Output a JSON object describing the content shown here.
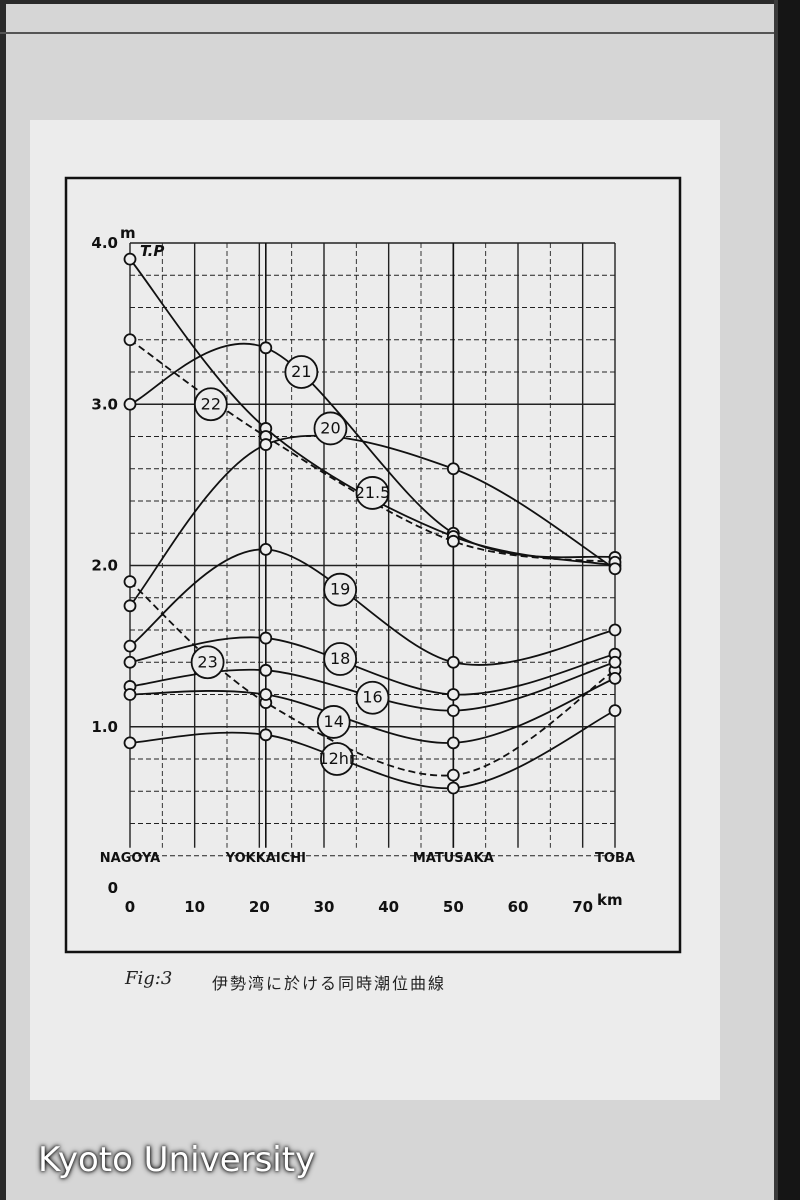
{
  "caption": {
    "fig": "Fig:3",
    "text": "伊勢湾に於ける同時潮位曲線"
  },
  "watermark": "Kyoto University",
  "chart_data": {
    "type": "line",
    "x_unit_label": "km",
    "y_unit_label": "m",
    "y_reference_label": "T.P",
    "xlim": [
      0,
      75
    ],
    "ylim": [
      0,
      4.0
    ],
    "x_ticks": [
      {
        "value": 0,
        "label": "0"
      },
      {
        "value": 10,
        "label": "10"
      },
      {
        "value": 20,
        "label": "20"
      },
      {
        "value": 30,
        "label": "30"
      },
      {
        "value": 40,
        "label": "40"
      },
      {
        "value": 50,
        "label": "50"
      },
      {
        "value": 60,
        "label": "60"
      },
      {
        "value": 70,
        "label": "70"
      }
    ],
    "y_ticks": [
      {
        "value": 0,
        "label": "0"
      },
      {
        "value": 1.0,
        "label": "1.0"
      },
      {
        "value": 2.0,
        "label": "2.0"
      },
      {
        "value": 3.0,
        "label": "3.0"
      },
      {
        "value": 4.0,
        "label": "4.0"
      }
    ],
    "grid": true,
    "locations": [
      {
        "name": "NAGOYA",
        "x": 0
      },
      {
        "name": "YOKKAICHI",
        "x": 21
      },
      {
        "name": "MATUSAKA",
        "x": 50
      },
      {
        "name": "TOBA",
        "x": 75
      }
    ],
    "series": [
      {
        "name": "21",
        "dashed": false,
        "x": [
          0,
          21,
          50,
          75
        ],
        "y": [
          3.0,
          3.35,
          2.2,
          2.05
        ],
        "label_at": [
          26.5,
          3.2
        ]
      },
      {
        "name": "21.5",
        "dashed": false,
        "x": [
          0,
          21,
          50,
          75
        ],
        "y": [
          3.9,
          2.85,
          2.18,
          2.0
        ],
        "label_at": [
          37.5,
          2.45
        ]
      },
      {
        "name": "22",
        "dashed": true,
        "x": [
          0,
          21,
          50,
          75
        ],
        "y": [
          3.4,
          2.8,
          2.15,
          2.02
        ],
        "label_at": [
          12.5,
          3.0
        ]
      },
      {
        "name": "20",
        "dashed": false,
        "x": [
          0,
          21,
          50,
          75
        ],
        "y": [
          1.75,
          2.75,
          2.6,
          1.98
        ],
        "label_at": [
          31,
          2.85
        ]
      },
      {
        "name": "19",
        "dashed": false,
        "x": [
          0,
          21,
          50,
          75
        ],
        "y": [
          1.5,
          2.1,
          1.4,
          1.6
        ],
        "label_at": [
          32.5,
          1.85
        ]
      },
      {
        "name": "23",
        "dashed": true,
        "x": [
          0,
          21,
          50,
          75
        ],
        "y": [
          1.9,
          1.15,
          0.7,
          1.35
        ],
        "label_at": [
          12,
          1.4
        ]
      },
      {
        "name": "18",
        "dashed": false,
        "x": [
          0,
          21,
          50,
          75
        ],
        "y": [
          1.4,
          1.55,
          1.2,
          1.45
        ],
        "label_at": [
          32.5,
          1.42
        ]
      },
      {
        "name": "16",
        "dashed": false,
        "x": [
          0,
          21,
          50,
          75
        ],
        "y": [
          1.25,
          1.35,
          1.1,
          1.4
        ],
        "label_at": [
          37.5,
          1.18
        ]
      },
      {
        "name": "14",
        "dashed": false,
        "x": [
          0,
          21,
          50,
          75
        ],
        "y": [
          1.2,
          1.2,
          0.9,
          1.3
        ],
        "label_at": [
          31.5,
          1.03
        ]
      },
      {
        "name": "12hr",
        "dashed": false,
        "x": [
          0,
          21,
          50,
          75
        ],
        "y": [
          0.9,
          0.95,
          0.62,
          1.1
        ],
        "label_at": [
          32,
          0.8
        ]
      }
    ]
  }
}
